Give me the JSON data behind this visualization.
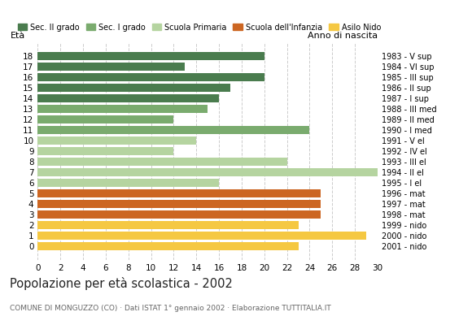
{
  "ages": [
    18,
    17,
    16,
    15,
    14,
    13,
    12,
    11,
    10,
    9,
    8,
    7,
    6,
    5,
    4,
    3,
    2,
    1,
    0
  ],
  "values": [
    20,
    13,
    20,
    17,
    16,
    15,
    12,
    24,
    14,
    12,
    22,
    30,
    16,
    25,
    25,
    25,
    23,
    29,
    23
  ],
  "right_labels": [
    "1983 - V sup",
    "1984 - VI sup",
    "1985 - III sup",
    "1986 - II sup",
    "1987 - I sup",
    "1988 - III med",
    "1989 - II med",
    "1990 - I med",
    "1991 - V el",
    "1992 - IV el",
    "1993 - III el",
    "1994 - II el",
    "1995 - I el",
    "1996 - mat",
    "1997 - mat",
    "1998 - mat",
    "1999 - nido",
    "2000 - nido",
    "2001 - nido"
  ],
  "colors": {
    "18": "#4a7c4e",
    "17": "#4a7c4e",
    "16": "#4a7c4e",
    "15": "#4a7c4e",
    "14": "#4a7c4e",
    "13": "#7aab6e",
    "12": "#7aab6e",
    "11": "#7aab6e",
    "10": "#b5d4a0",
    "9": "#b5d4a0",
    "8": "#b5d4a0",
    "7": "#b5d4a0",
    "6": "#b5d4a0",
    "5": "#cc6622",
    "4": "#cc6622",
    "3": "#cc6622",
    "2": "#f5c842",
    "1": "#f5c842",
    "0": "#f5c842"
  },
  "legend_labels": [
    "Sec. II grado",
    "Sec. I grado",
    "Scuola Primaria",
    "Scuola dell'Infanzia",
    "Asilo Nido"
  ],
  "legend_colors": [
    "#4a7c4e",
    "#7aab6e",
    "#b5d4a0",
    "#cc6622",
    "#f5c842"
  ],
  "title": "Popolazione per età scolastica - 2002",
  "subtitle": "COMUNE DI MONGUZZO (CO) · Dati ISTAT 1° gennaio 2002 · Elaborazione TUTTITALIA.IT",
  "xlabel_eta": "Età",
  "xlabel_anno": "Anno di nascita",
  "xlim": [
    0,
    30
  ],
  "xticks": [
    0,
    2,
    4,
    6,
    8,
    10,
    12,
    14,
    16,
    18,
    20,
    22,
    24,
    26,
    28,
    30
  ],
  "background_color": "#ffffff",
  "grid_color": "#cccccc"
}
